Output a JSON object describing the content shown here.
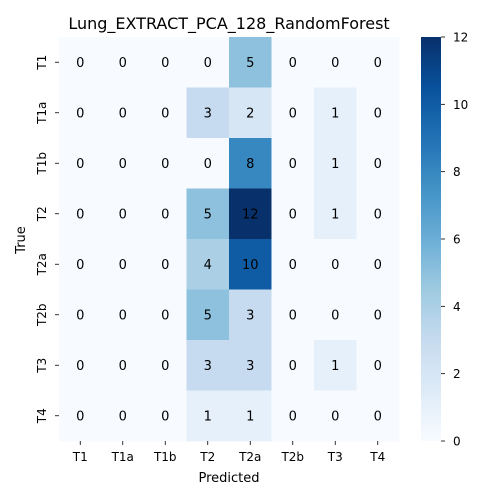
{
  "chart_data": {
    "type": "heatmap",
    "title": "Lung_EXTRACT_PCA_128_RandomForest",
    "xlabel": "Predicted",
    "ylabel": "True",
    "x_categories": [
      "T1",
      "T1a",
      "T1b",
      "T2",
      "T2a",
      "T2b",
      "T3",
      "T4"
    ],
    "y_categories": [
      "T1",
      "T1a",
      "T1b",
      "T2",
      "T2a",
      "T2b",
      "T3",
      "T4"
    ],
    "values": [
      [
        0,
        0,
        0,
        0,
        5,
        0,
        0,
        0
      ],
      [
        0,
        0,
        0,
        3,
        2,
        0,
        1,
        0
      ],
      [
        0,
        0,
        0,
        0,
        8,
        0,
        1,
        0
      ],
      [
        0,
        0,
        0,
        5,
        12,
        0,
        1,
        0
      ],
      [
        0,
        0,
        0,
        4,
        10,
        0,
        0,
        0
      ],
      [
        0,
        0,
        0,
        5,
        3,
        0,
        0,
        0
      ],
      [
        0,
        0,
        0,
        3,
        3,
        0,
        1,
        0
      ],
      [
        0,
        0,
        0,
        1,
        1,
        0,
        0,
        0
      ]
    ],
    "vmin": 0,
    "vmax": 12,
    "colorbar_ticks": [
      0,
      2,
      4,
      6,
      8,
      10,
      12
    ],
    "colormap": "Blues"
  }
}
